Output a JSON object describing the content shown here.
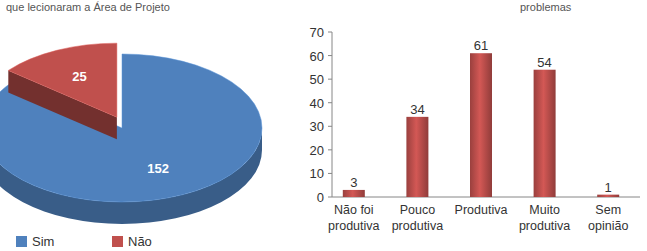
{
  "chart_data": [
    {
      "type": "pie",
      "title": "que lecionaram a Área de Projeto",
      "categories": [
        "Sim",
        "Não"
      ],
      "values": [
        152,
        25
      ],
      "colors": [
        "#4f81bd",
        "#c0504d"
      ],
      "data_labels": true,
      "legend": "bottom"
    },
    {
      "type": "bar",
      "title": "problemas",
      "categories": [
        "Não foi produtiva",
        "Pouco produtiva",
        "Produtiva",
        "Muito produtiva",
        "Sem opinião"
      ],
      "values": [
        3,
        34,
        61,
        54,
        1
      ],
      "color": "#c0504d",
      "ylim": [
        0,
        70
      ],
      "yticks": [
        0,
        10,
        20,
        30,
        40,
        50,
        60,
        70
      ],
      "grid": false,
      "data_labels": true
    }
  ]
}
